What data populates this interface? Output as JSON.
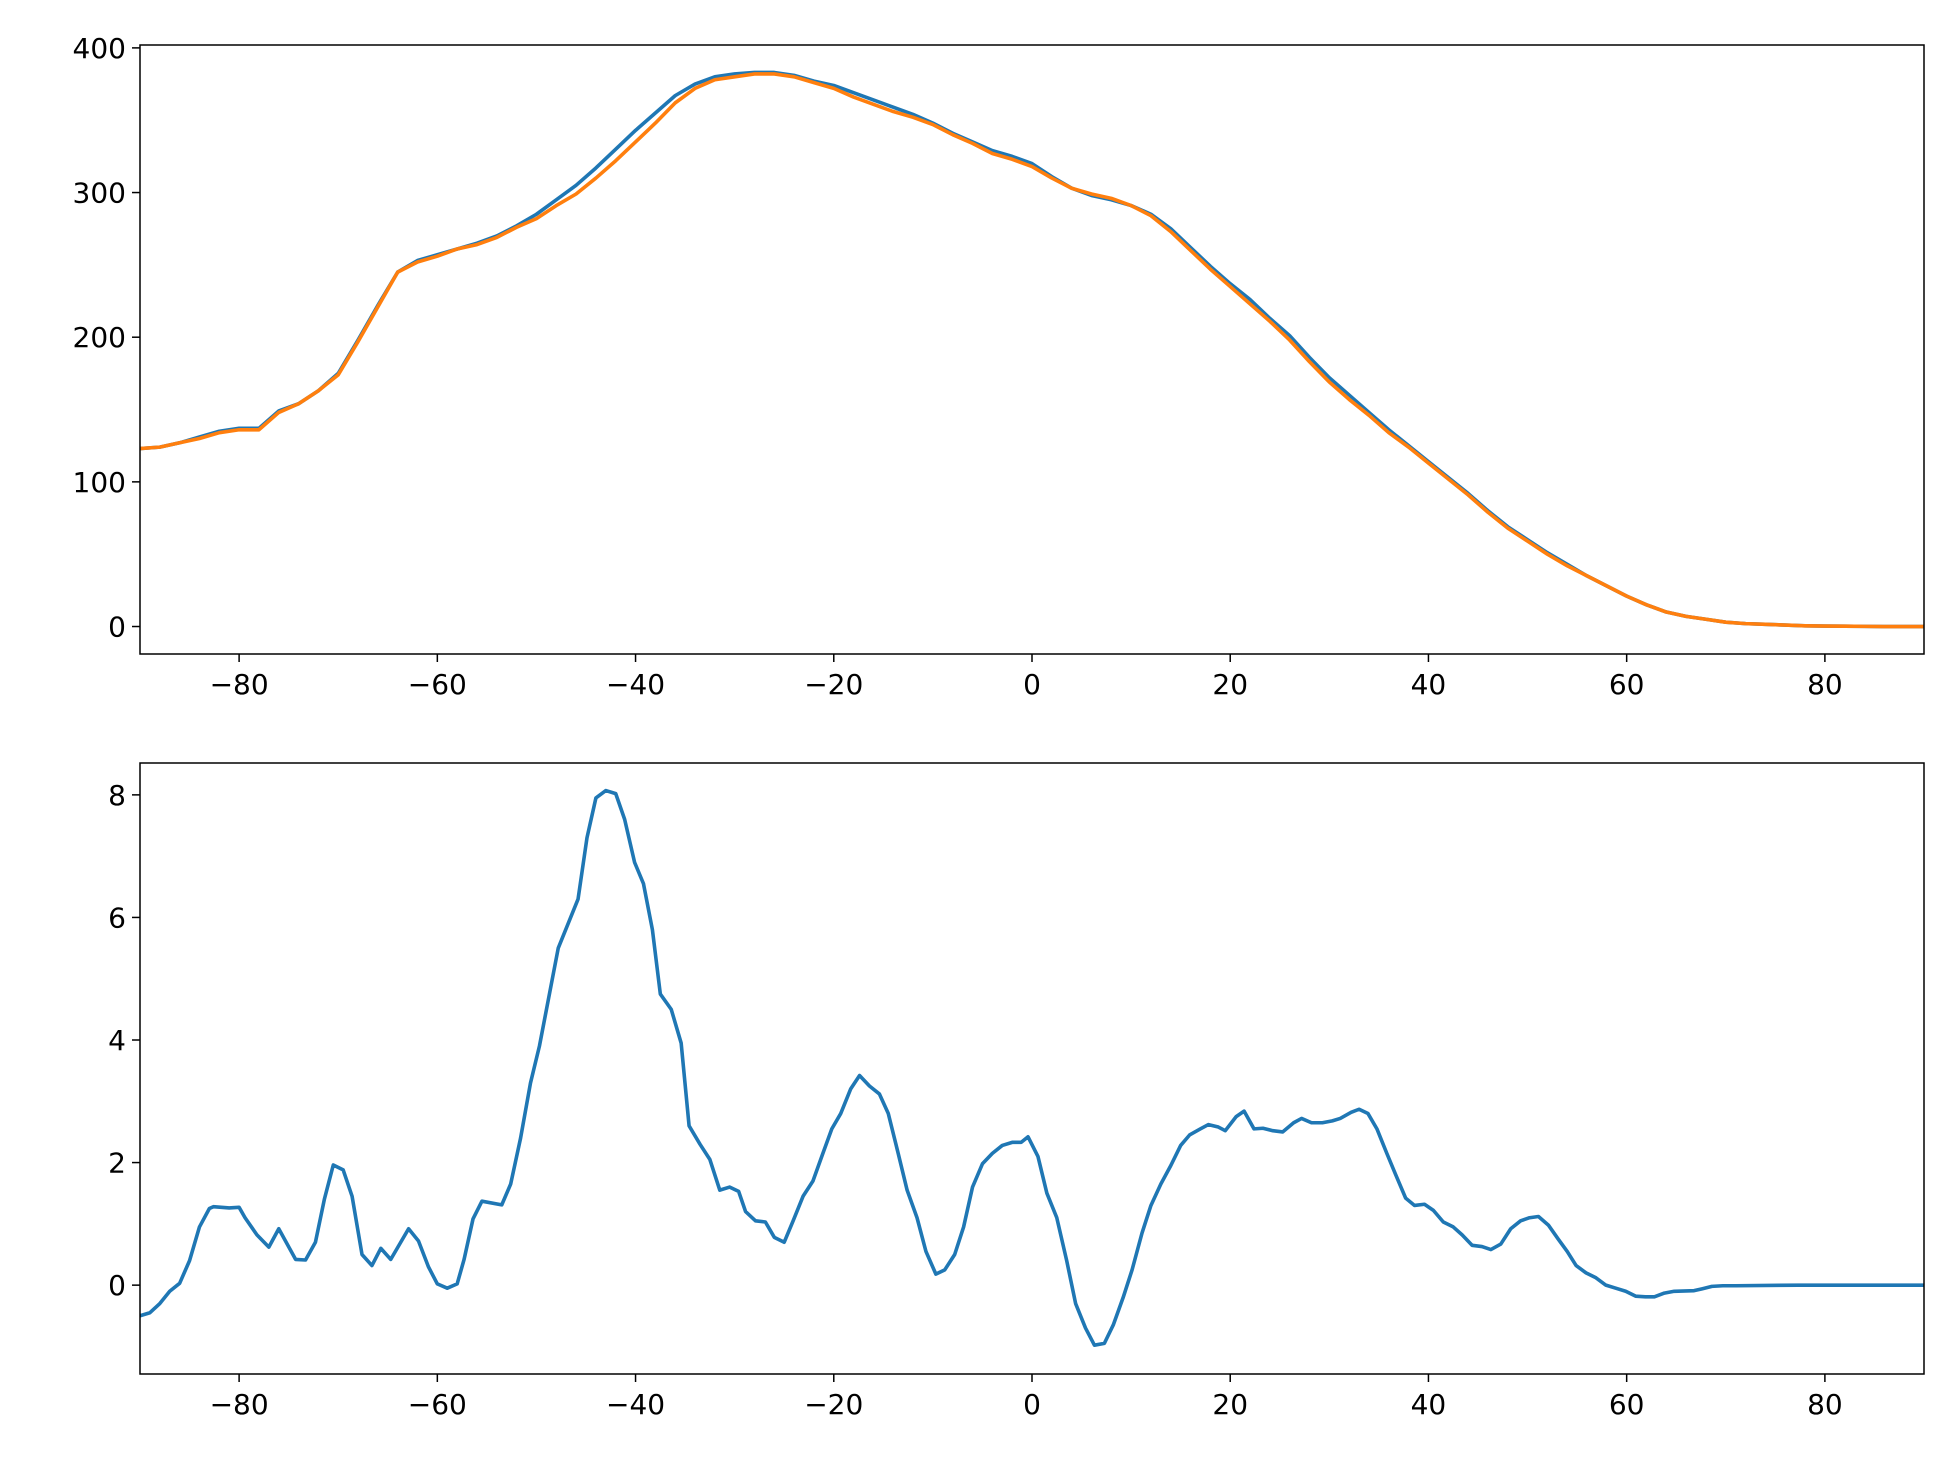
{
  "chart_data": [
    {
      "type": "line",
      "x": [
        -90,
        -88,
        -86,
        -84,
        -82,
        -80,
        -78,
        -76,
        -74,
        -72,
        -70,
        -68,
        -66,
        -64,
        -62,
        -60,
        -58,
        -56,
        -54,
        -52,
        -50,
        -48,
        -46,
        -44,
        -42,
        -40,
        -38,
        -36,
        -34,
        -32,
        -30,
        -28,
        -26,
        -24,
        -22,
        -20,
        -18,
        -16,
        -14,
        -12,
        -10,
        -8,
        -6,
        -4,
        -2,
        0,
        2,
        4,
        6,
        8,
        10,
        12,
        14,
        16,
        18,
        20,
        22,
        24,
        26,
        28,
        30,
        32,
        34,
        36,
        38,
        40,
        42,
        44,
        46,
        48,
        50,
        52,
        54,
        56,
        58,
        60,
        62,
        64,
        66,
        68,
        70,
        72,
        74,
        76,
        78,
        80,
        82,
        84,
        86,
        88,
        90
      ],
      "series": [
        {
          "color": "#1f77b4",
          "values": [
            123,
            124,
            127,
            131,
            135,
            137,
            137,
            149,
            154,
            163,
            175,
            198,
            222,
            245,
            253,
            257,
            261,
            265,
            270,
            277,
            285,
            295,
            305,
            317,
            330,
            343,
            355,
            367,
            375,
            380,
            382,
            383,
            383,
            381,
            377,
            374,
            369,
            364,
            359,
            354,
            348,
            341,
            335,
            329,
            325,
            320,
            311,
            303,
            298,
            295,
            291,
            285,
            275,
            262,
            249,
            237,
            226,
            213,
            201,
            186,
            172,
            160,
            148,
            136,
            125,
            114,
            103,
            92,
            80,
            69,
            60,
            51,
            43,
            35,
            28,
            21,
            15,
            10,
            7,
            5,
            3,
            2,
            1.5,
            1,
            0.5,
            0.3,
            0.2,
            0.1,
            0,
            0,
            0
          ]
        },
        {
          "color": "#ff7f0e",
          "values": [
            123,
            124,
            127,
            130,
            134,
            136,
            136,
            148,
            154,
            163,
            174,
            197,
            221,
            245,
            252,
            256,
            261,
            264,
            269,
            276,
            282,
            291,
            299,
            310,
            322,
            335,
            348,
            362,
            372,
            378,
            380,
            382,
            382,
            380,
            376,
            372,
            366,
            361,
            356,
            352,
            347,
            340,
            334,
            327,
            323,
            318,
            310,
            303,
            299,
            296,
            291,
            284,
            273,
            260,
            247,
            235,
            223,
            211,
            198,
            183,
            169,
            157,
            146,
            134,
            124,
            113,
            102,
            91,
            79,
            68,
            59,
            50,
            42,
            35,
            28,
            21,
            15,
            10,
            7,
            5,
            3,
            2,
            1.5,
            1,
            0.5,
            0.3,
            0.2,
            0.1,
            0,
            0,
            0
          ]
        }
      ],
      "xlim": [
        -90,
        90
      ],
      "xticks": [
        {
          "value": -80,
          "label": "−80"
        },
        {
          "value": -60,
          "label": "−60"
        },
        {
          "value": -40,
          "label": "−40"
        },
        {
          "value": -20,
          "label": "−20"
        },
        0,
        20,
        40,
        60,
        80
      ],
      "ylim": [
        -19,
        402
      ],
      "yticks": [
        0,
        100,
        200,
        300,
        400
      ],
      "grid": false
    },
    {
      "type": "line",
      "x": [
        -90,
        -89,
        -88,
        -87,
        -86,
        -85,
        -84,
        -83,
        -82.6,
        -81,
        -80,
        -79.4,
        -78.2,
        -77,
        -76,
        -74.3,
        -73.3,
        -72.3,
        -71.4,
        -70.5,
        -69.5,
        -68.6,
        -67.6,
        -66.6,
        -65.7,
        -64.7,
        -62.9,
        -61.9,
        -60.9,
        -60,
        -59,
        -58,
        -57.3,
        -56.4,
        -55.5,
        -53.5,
        -52.6,
        -51.6,
        -50.6,
        -49.7,
        -47.8,
        -45.8,
        -44.9,
        -44,
        -43,
        -42,
        -41.1,
        -40.1,
        -39.2,
        -38.3,
        -37.5,
        -36.4,
        -35.4,
        -34.6,
        -33.5,
        -32.5,
        -31.5,
        -30.5,
        -29.6,
        -28.9,
        -27.9,
        -26.9,
        -26,
        -25,
        -24.1,
        -23.1,
        -22.1,
        -21.1,
        -20.2,
        -19.3,
        -18.3,
        -17.4,
        -16.4,
        -15.4,
        -14.5,
        -13.5,
        -12.6,
        -11.6,
        -10.7,
        -9.7,
        -8.8,
        -7.8,
        -6.9,
        -6,
        -5,
        -4,
        -3,
        -2,
        -1.1,
        -0.4,
        0.6,
        1.5,
        2.5,
        3.5,
        4.4,
        5.4,
        6.3,
        7.3,
        8.2,
        9.2,
        10.1,
        11.1,
        12,
        13,
        14,
        15,
        15.9,
        17,
        17.8,
        18.8,
        19.5,
        20.6,
        21.4,
        22.4,
        23.3,
        24.3,
        25.3,
        26.4,
        27.2,
        28.2,
        29.3,
        30.3,
        31.1,
        32.2,
        33,
        33.9,
        34.8,
        35.8,
        36.7,
        37.7,
        38.6,
        39.6,
        40.5,
        41.5,
        42.5,
        43.4,
        44.4,
        45.4,
        46.3,
        47.3,
        48.3,
        49.3,
        50.2,
        51.1,
        52.1,
        53.1,
        54,
        54.9,
        55.9,
        56.9,
        57.9,
        58.9,
        59.9,
        60.9,
        61.9,
        62.8,
        63.8,
        64.8,
        66.8,
        67.6,
        68.6,
        69.7,
        71,
        77.3,
        90
      ],
      "series": [
        {
          "color": "#1f77b4",
          "values": [
            -0.5,
            -0.45,
            -0.3,
            -0.1,
            0.03,
            0.4,
            0.95,
            1.25,
            1.28,
            1.26,
            1.27,
            1.1,
            0.82,
            0.62,
            0.92,
            0.42,
            0.41,
            0.7,
            1.4,
            1.96,
            1.88,
            1.45,
            0.5,
            0.32,
            0.6,
            0.42,
            0.92,
            0.72,
            0.3,
            0.02,
            -0.05,
            0.02,
            0.42,
            1.08,
            1.37,
            1.31,
            1.65,
            2.4,
            3.3,
            3.9,
            5.5,
            6.3,
            7.3,
            7.95,
            8.07,
            8.02,
            7.6,
            6.9,
            6.55,
            5.8,
            4.75,
            4.5,
            3.95,
            2.6,
            2.3,
            2.05,
            1.55,
            1.6,
            1.53,
            1.2,
            1.05,
            1.03,
            0.78,
            0.7,
            1.05,
            1.45,
            1.7,
            2.15,
            2.55,
            2.8,
            3.2,
            3.42,
            3.25,
            3.12,
            2.8,
            2.15,
            1.55,
            1.1,
            0.55,
            0.18,
            0.25,
            0.5,
            0.95,
            1.6,
            1.98,
            2.15,
            2.28,
            2.33,
            2.33,
            2.42,
            2.1,
            1.5,
            1.1,
            0.4,
            -0.3,
            -0.7,
            -0.98,
            -0.95,
            -0.65,
            -0.2,
            0.25,
            0.85,
            1.3,
            1.65,
            1.95,
            2.28,
            2.45,
            2.55,
            2.62,
            2.58,
            2.52,
            2.75,
            2.84,
            2.55,
            2.56,
            2.52,
            2.5,
            2.65,
            2.72,
            2.65,
            2.65,
            2.68,
            2.72,
            2.82,
            2.87,
            2.8,
            2.55,
            2.15,
            1.8,
            1.42,
            1.3,
            1.32,
            1.22,
            1.03,
            0.95,
            0.82,
            0.65,
            0.63,
            0.58,
            0.67,
            0.92,
            1.05,
            1.1,
            1.12,
            0.98,
            0.75,
            0.55,
            0.32,
            0.2,
            0.12,
            0,
            -0.05,
            -0.1,
            -0.18,
            -0.19,
            -0.19,
            -0.13,
            -0.1,
            -0.09,
            -0.06,
            -0.02,
            -0.01,
            -0.01,
            0,
            0
          ]
        }
      ],
      "xlim": [
        -90,
        90
      ],
      "xticks": [
        {
          "value": -80,
          "label": "−80"
        },
        {
          "value": -60,
          "label": "−60"
        },
        {
          "value": -40,
          "label": "−40"
        },
        {
          "value": -20,
          "label": "−20"
        },
        0,
        20,
        40,
        60,
        80
      ],
      "ylim": [
        -1.45,
        8.52
      ],
      "yticks": [
        0,
        2,
        4,
        6,
        8
      ],
      "grid": false
    }
  ]
}
